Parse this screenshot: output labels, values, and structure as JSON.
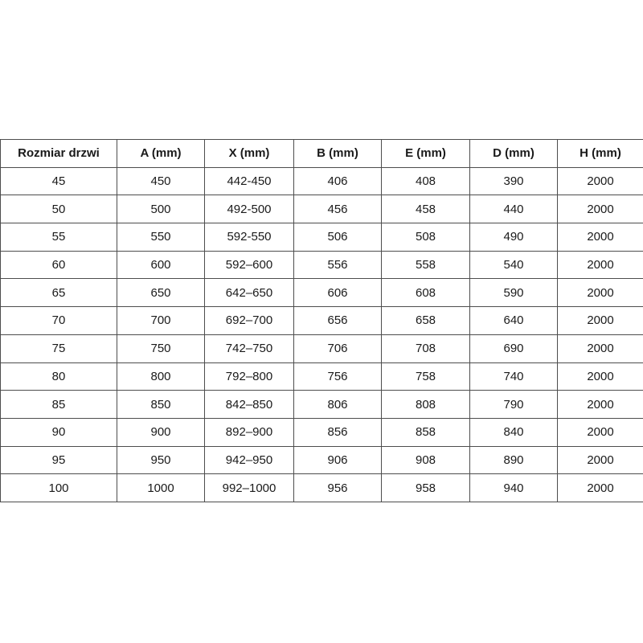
{
  "table": {
    "title": "door-dimensions-table",
    "columns": [
      "Rozmiar drzwi",
      "A (mm)",
      "X (mm)",
      "B (mm)",
      "E (mm)",
      "D (mm)",
      "H (mm)"
    ],
    "rows": [
      [
        "45",
        "450",
        "442-450",
        "406",
        "408",
        "390",
        "2000"
      ],
      [
        "50",
        "500",
        "492-500",
        "456",
        "458",
        "440",
        "2000"
      ],
      [
        "55",
        "550",
        "592-550",
        "506",
        "508",
        "490",
        "2000"
      ],
      [
        "60",
        "600",
        "592–600",
        "556",
        "558",
        "540",
        "2000"
      ],
      [
        "65",
        "650",
        "642–650",
        "606",
        "608",
        "590",
        "2000"
      ],
      [
        "70",
        "700",
        "692–700",
        "656",
        "658",
        "640",
        "2000"
      ],
      [
        "75",
        "750",
        "742–750",
        "706",
        "708",
        "690",
        "2000"
      ],
      [
        "80",
        "800",
        "792–800",
        "756",
        "758",
        "740",
        "2000"
      ],
      [
        "85",
        "850",
        "842–850",
        "806",
        "808",
        "790",
        "2000"
      ],
      [
        "90",
        "900",
        "892–900",
        "856",
        "858",
        "840",
        "2000"
      ],
      [
        "95",
        "950",
        "942–950",
        "906",
        "908",
        "890",
        "2000"
      ],
      [
        "100",
        "1000",
        "992–1000",
        "956",
        "958",
        "940",
        "2000"
      ]
    ],
    "colors": {
      "border": "#4d4d4d",
      "text": "#1a1a1a",
      "background": "#ffffff"
    }
  }
}
